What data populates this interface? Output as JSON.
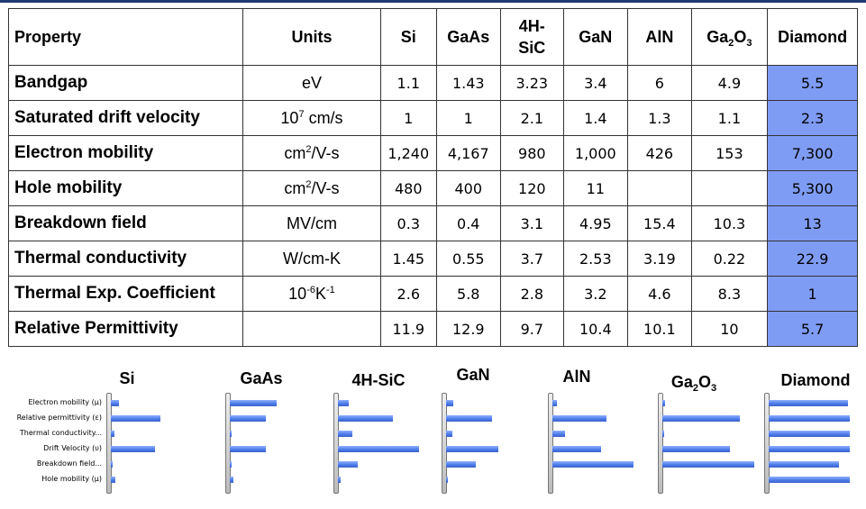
{
  "table": {
    "headers": [
      {
        "html": "Property"
      },
      {
        "html": "Units"
      },
      {
        "html": "Si"
      },
      {
        "html": "GaAs"
      },
      {
        "html": "4H-<br>SiC"
      },
      {
        "html": "GaN"
      },
      {
        "html": "AlN"
      },
      {
        "html": "Ga<sub>2</sub>O<sub>3</sub>"
      },
      {
        "html": "Diamond"
      }
    ],
    "rows": [
      {
        "name": "Bandgap",
        "unit": "eV",
        "values": [
          "1.1",
          "1.43",
          "3.23",
          "3.4",
          "6",
          "4.9",
          "5.5"
        ]
      },
      {
        "name": "Saturated drift velocity",
        "unit": "10<sup>7</sup> cm/s",
        "values": [
          "1",
          "1",
          "2.1",
          "1.4",
          "1.3",
          "1.1",
          "2.3"
        ]
      },
      {
        "name": "Electron mobility",
        "unit": "cm<sup>2</sup>/V-s",
        "values": [
          "1,240",
          "4,167",
          "980",
          "1,000",
          "426",
          "153",
          "7,300"
        ]
      },
      {
        "name": "Hole mobility",
        "unit": "cm<sup>2</sup>/V-s",
        "values": [
          "480",
          "400",
          "120",
          "11",
          "",
          "",
          "5,300"
        ]
      },
      {
        "name": "Breakdown field",
        "unit": "MV/cm",
        "values": [
          "0.3",
          "0.4",
          "3.1",
          "4.95",
          "15.4",
          "10.3",
          "13"
        ]
      },
      {
        "name": "Thermal conductivity",
        "unit": "W/cm-K",
        "values": [
          "1.45",
          "0.55",
          "3.7",
          "2.53",
          "3.19",
          "0.22",
          "22.9"
        ]
      },
      {
        "name": "Thermal Exp. Coefficient",
        "unit": "10<sup>-6</sup>K<sup>-1</sup>",
        "values": [
          "2.6",
          "5.8",
          "2.8",
          "3.2",
          "4.6",
          "8.3",
          "1"
        ]
      },
      {
        "name": "Relative Permittivity",
        "unit": "",
        "values": [
          "11.9",
          "12.9",
          "9.7",
          "10.4",
          "10.1",
          "10",
          "5.7"
        ]
      }
    ]
  },
  "colors": {
    "diamond_highlight": "#7f9cf5",
    "bar": "#4a78e8"
  },
  "chart_data": {
    "type": "bar",
    "orientation": "horizontal",
    "categories": [
      "Electron mobility (μ)",
      "Relative permittivity (ε)",
      "Thermal conductivity...",
      "Drift Velocity (υ)",
      "Breakdown field...",
      "Hole mobility (μ)"
    ],
    "panels": [
      {
        "name": "Si",
        "name_html": "Si",
        "values": [
          0.15,
          0.92,
          0.06,
          0.82,
          0.02,
          0.09
        ]
      },
      {
        "name": "GaAs",
        "name_html": "GaAs",
        "values": [
          0.95,
          0.73,
          0.03,
          0.73,
          0.03,
          0.08
        ]
      },
      {
        "name": "4H-SiC",
        "name_html": "4H-SiC",
        "values": [
          0.13,
          0.68,
          0.18,
          1.0,
          0.24,
          0.03
        ]
      },
      {
        "name": "GaN",
        "name_html": "GaN",
        "values": [
          0.13,
          0.85,
          0.12,
          0.97,
          0.55,
          0.02
        ]
      },
      {
        "name": "Ga2O3",
        "name_html": "Ga<sub>2</sub>O<sub>3</sub>",
        "values": [
          0.03,
          0.78,
          0.02,
          0.68,
          0.93,
          0.0
        ]
      },
      {
        "name": "AlN",
        "name_html": "AlN",
        "values": [
          0.06,
          0.67,
          0.15,
          0.6,
          1.0,
          0.0
        ]
      },
      {
        "name": "Diamond",
        "name_html": "Diamond",
        "values": [
          0.98,
          1.0,
          1.0,
          1.0,
          0.87,
          1.0
        ]
      }
    ]
  }
}
